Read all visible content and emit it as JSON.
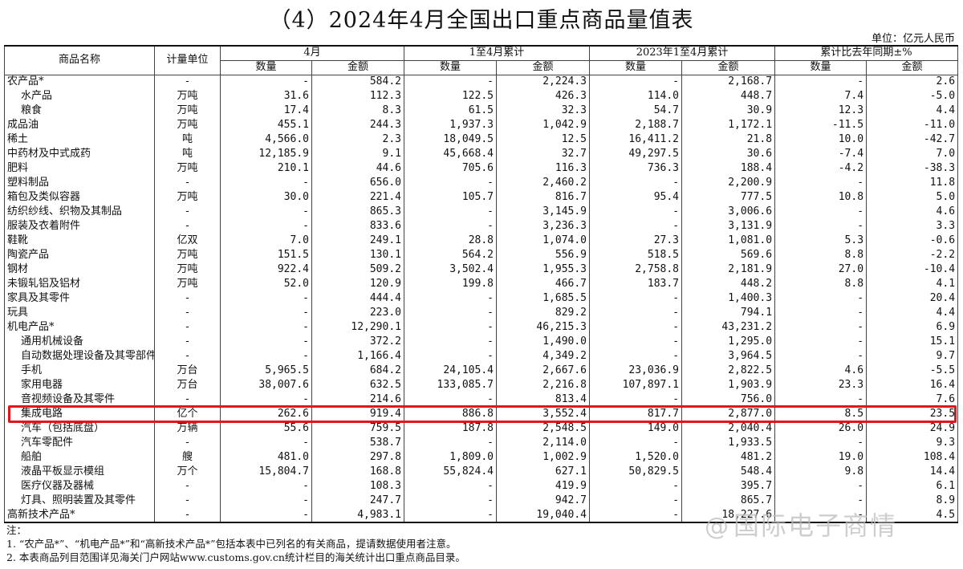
{
  "title": "（4）2024年4月全国出口重点商品量值表",
  "unit_note": "单位：亿元人民币",
  "headers": {
    "name": "商品名称",
    "unit": "计量单位",
    "groups": [
      "4月",
      "1至4月累计",
      "2023年1至4月累计",
      "累计比去年同期±%"
    ],
    "qty": "数量",
    "amt": "金额"
  },
  "rows": [
    {
      "name": "农产品*",
      "level": 0,
      "unit": "-",
      "v": [
        "-",
        "584.2",
        "-",
        "2,224.3",
        "-",
        "2,168.7",
        "-",
        "2.6"
      ]
    },
    {
      "name": "水产品",
      "level": 1,
      "unit": "万吨",
      "v": [
        "31.6",
        "112.3",
        "122.5",
        "426.3",
        "114.0",
        "448.7",
        "7.4",
        "-5.0"
      ]
    },
    {
      "name": "粮食",
      "level": 1,
      "unit": "万吨",
      "v": [
        "17.4",
        "8.3",
        "61.5",
        "32.3",
        "54.7",
        "30.9",
        "12.3",
        "4.4"
      ]
    },
    {
      "name": "成品油",
      "level": 0,
      "unit": "万吨",
      "v": [
        "455.1",
        "244.3",
        "1,937.3",
        "1,042.9",
        "2,188.7",
        "1,172.1",
        "-11.5",
        "-11.0"
      ]
    },
    {
      "name": "稀土",
      "level": 0,
      "unit": "吨",
      "v": [
        "4,566.0",
        "2.3",
        "18,049.5",
        "12.5",
        "16,411.2",
        "21.8",
        "10.0",
        "-42.7"
      ]
    },
    {
      "name": "中药材及中式成药",
      "level": 0,
      "unit": "吨",
      "v": [
        "12,185.9",
        "9.1",
        "45,668.4",
        "32.7",
        "49,297.5",
        "30.6",
        "-7.4",
        "7.0"
      ]
    },
    {
      "name": "肥料",
      "level": 0,
      "unit": "万吨",
      "v": [
        "210.1",
        "44.6",
        "705.6",
        "116.3",
        "736.3",
        "188.4",
        "-4.2",
        "-38.3"
      ]
    },
    {
      "name": "塑料制品",
      "level": 0,
      "unit": "-",
      "v": [
        "-",
        "656.0",
        "-",
        "2,460.2",
        "-",
        "2,200.9",
        "-",
        "11.8"
      ]
    },
    {
      "name": "箱包及类似容器",
      "level": 0,
      "unit": "万吨",
      "v": [
        "30.0",
        "221.4",
        "105.7",
        "816.7",
        "95.4",
        "777.5",
        "10.8",
        "5.0"
      ]
    },
    {
      "name": "纺织纱线、织物及其制品",
      "level": 0,
      "unit": "-",
      "v": [
        "-",
        "865.3",
        "-",
        "3,145.9",
        "-",
        "3,006.6",
        "-",
        "4.6"
      ]
    },
    {
      "name": "服装及衣着附件",
      "level": 0,
      "unit": "-",
      "v": [
        "-",
        "833.6",
        "-",
        "3,236.3",
        "-",
        "3,131.9",
        "-",
        "3.3"
      ]
    },
    {
      "name": "鞋靴",
      "level": 0,
      "unit": "亿双",
      "v": [
        "7.0",
        "249.1",
        "28.8",
        "1,074.0",
        "27.3",
        "1,081.0",
        "5.3",
        "-0.6"
      ]
    },
    {
      "name": "陶瓷产品",
      "level": 0,
      "unit": "万吨",
      "v": [
        "151.5",
        "130.1",
        "564.2",
        "556.9",
        "518.5",
        "569.6",
        "8.8",
        "-2.2"
      ]
    },
    {
      "name": "钢材",
      "level": 0,
      "unit": "万吨",
      "v": [
        "922.4",
        "509.2",
        "3,502.4",
        "1,955.3",
        "2,758.8",
        "2,181.9",
        "27.0",
        "-10.4"
      ]
    },
    {
      "name": "未锻轧铝及铝材",
      "level": 0,
      "unit": "万吨",
      "v": [
        "52.0",
        "120.9",
        "199.8",
        "466.7",
        "183.7",
        "448.2",
        "8.8",
        "4.1"
      ]
    },
    {
      "name": "家具及其零件",
      "level": 0,
      "unit": "-",
      "v": [
        "-",
        "444.4",
        "-",
        "1,685.5",
        "-",
        "1,400.3",
        "-",
        "20.4"
      ]
    },
    {
      "name": "玩具",
      "level": 0,
      "unit": "-",
      "v": [
        "-",
        "223.0",
        "-",
        "829.2",
        "-",
        "794.1",
        "-",
        "4.4"
      ]
    },
    {
      "name": "机电产品*",
      "level": 0,
      "unit": "-",
      "v": [
        "-",
        "12,290.1",
        "-",
        "46,215.3",
        "-",
        "43,231.2",
        "-",
        "6.9"
      ]
    },
    {
      "name": "通用机械设备",
      "level": 1,
      "unit": "-",
      "v": [
        "-",
        "372.2",
        "-",
        "1,490.0",
        "-",
        "1,295.0",
        "-",
        "15.1"
      ]
    },
    {
      "name": "自动数据处理设备及其零部件",
      "level": 1,
      "unit": "-",
      "v": [
        "-",
        "1,166.4",
        "-",
        "4,349.2",
        "-",
        "3,964.5",
        "-",
        "9.7"
      ]
    },
    {
      "name": "手机",
      "level": 1,
      "unit": "万台",
      "v": [
        "5,965.5",
        "684.2",
        "24,105.4",
        "2,667.6",
        "23,036.9",
        "2,822.5",
        "4.6",
        "-5.5"
      ]
    },
    {
      "name": "家用电器",
      "level": 1,
      "unit": "万台",
      "v": [
        "38,007.6",
        "632.5",
        "133,085.7",
        "2,216.8",
        "107,897.1",
        "1,903.9",
        "23.3",
        "16.4"
      ]
    },
    {
      "name": "音视频设备及其零件",
      "level": 1,
      "unit": "-",
      "v": [
        "-",
        "214.6",
        "-",
        "813.4",
        "-",
        "756.0",
        "-",
        "7.6"
      ]
    },
    {
      "name": "集成电路",
      "level": 1,
      "unit": "亿个",
      "v": [
        "262.6",
        "919.4",
        "886.8",
        "3,552.4",
        "817.7",
        "2,877.0",
        "8.5",
        "23.5"
      ],
      "highlight": true
    },
    {
      "name": "汽车（包括底盘）",
      "level": 1,
      "unit": "万辆",
      "v": [
        "55.6",
        "759.5",
        "187.8",
        "2,548.5",
        "149.0",
        "2,040.4",
        "26.0",
        "24.9"
      ]
    },
    {
      "name": "汽车零配件",
      "level": 1,
      "unit": "-",
      "v": [
        "-",
        "538.7",
        "-",
        "2,114.0",
        "-",
        "1,933.5",
        "-",
        "9.3"
      ]
    },
    {
      "name": "船舶",
      "level": 1,
      "unit": "艘",
      "v": [
        "481.0",
        "297.8",
        "1,809.0",
        "1,002.9",
        "1,520.0",
        "481.2",
        "19.0",
        "108.4"
      ]
    },
    {
      "name": "液晶平板显示模组",
      "level": 1,
      "unit": "万个",
      "v": [
        "15,804.7",
        "168.8",
        "55,824.4",
        "627.1",
        "50,829.5",
        "548.4",
        "9.8",
        "14.4"
      ]
    },
    {
      "name": "医疗仪器及器械",
      "level": 1,
      "unit": "-",
      "v": [
        "-",
        "108.3",
        "-",
        "419.9",
        "-",
        "395.7",
        "-",
        "6.1"
      ]
    },
    {
      "name": "灯具、照明装置及其零件",
      "level": 1,
      "unit": "-",
      "v": [
        "-",
        "247.7",
        "-",
        "942.7",
        "-",
        "865.7",
        "-",
        "8.9"
      ]
    },
    {
      "name": "高新技术产品*",
      "level": 0,
      "unit": "-",
      "v": [
        "-",
        "4,983.1",
        "-",
        "19,040.4",
        "-",
        "18,227.6",
        "-",
        "4.5"
      ]
    }
  ],
  "notes": [
    "注：",
    "1. “农产品*”、“机电产品*”和“高新技术产品*”包括本表中已列名的有关商品，提请数据使用者注意。",
    "2. 本表商品列目范围详见海关门户网站www.customs.gov.cn统计栏目的海关统计出口重点商品目录。"
  ],
  "watermark": "国际电子商情",
  "colors": {
    "highlight": "#e4141c",
    "text": "#111111",
    "background": "#ffffff"
  }
}
